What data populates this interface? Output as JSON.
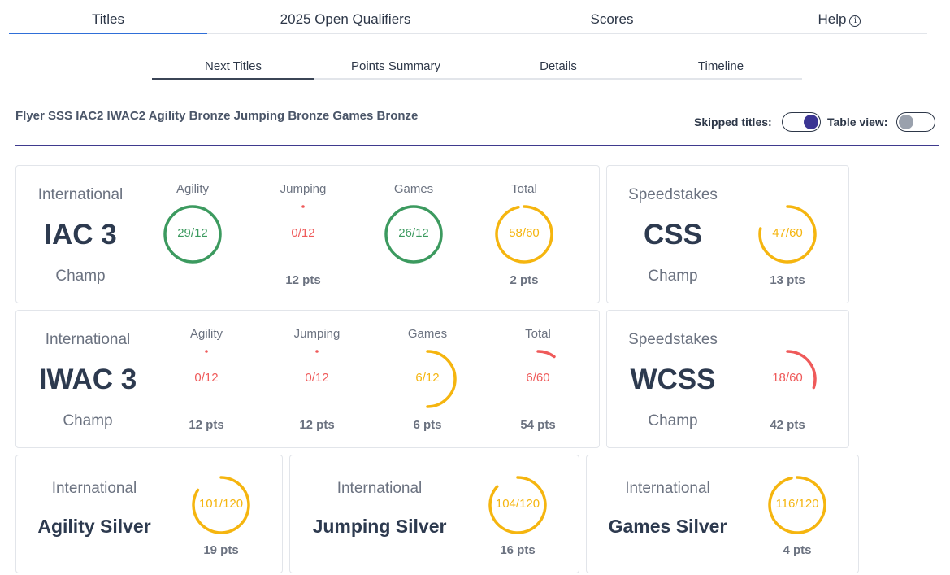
{
  "colors": {
    "green": "#3c9a5f",
    "amber": "#f5b50f",
    "red": "#ef5a5a",
    "accent": "#2f6fd8",
    "toggle_on": "#3b3593",
    "toggle_off": "#9aa1ad"
  },
  "top_tabs": [
    {
      "label": "Titles",
      "active": true
    },
    {
      "label": "2025 Open Qualifiers",
      "active": false
    },
    {
      "label": "Scores",
      "active": false
    },
    {
      "label": "Help",
      "active": false,
      "icon": "info-icon"
    }
  ],
  "sub_tabs": [
    {
      "label": "Next Titles",
      "active": true
    },
    {
      "label": "Points Summary",
      "active": false
    },
    {
      "label": "Details",
      "active": false
    },
    {
      "label": "Timeline",
      "active": false
    }
  ],
  "earned_titles": "Flyer SSS IAC2 IWAC2 Agility Bronze Jumping Bronze Games Bronze",
  "toggles": {
    "skipped": {
      "label": "Skipped titles:",
      "on": true
    },
    "table": {
      "label": "Table view:",
      "on": false
    }
  },
  "cards": {
    "iac": {
      "group": "International",
      "title": "IAC 3",
      "level": "Champ",
      "gauges": [
        {
          "label": "Agility",
          "value": "29/12",
          "fraction": 1.0,
          "color": "green",
          "pts": ""
        },
        {
          "label": "Jumping",
          "value": "0/12",
          "fraction": 0.0,
          "color": "red",
          "pts": "12 pts"
        },
        {
          "label": "Games",
          "value": "26/12",
          "fraction": 1.0,
          "color": "green",
          "pts": ""
        },
        {
          "label": "Total",
          "value": "58/60",
          "fraction": 0.967,
          "color": "amber",
          "pts": "2 pts"
        }
      ]
    },
    "css": {
      "group": "Speedstakes",
      "title": "CSS",
      "level": "Champ",
      "gauge": {
        "value": "47/60",
        "fraction": 0.783,
        "color": "amber",
        "pts": "13 pts"
      }
    },
    "iwac": {
      "group": "International",
      "title": "IWAC 3",
      "level": "Champ",
      "gauges": [
        {
          "label": "Agility",
          "value": "0/12",
          "fraction": 0.0,
          "color": "red",
          "pts": "12 pts"
        },
        {
          "label": "Jumping",
          "value": "0/12",
          "fraction": 0.0,
          "color": "red",
          "pts": "12 pts"
        },
        {
          "label": "Games",
          "value": "6/12",
          "fraction": 0.5,
          "color": "amber",
          "pts": "6 pts"
        },
        {
          "label": "Total",
          "value": "6/60",
          "fraction": 0.1,
          "color": "red",
          "pts": "54 pts"
        }
      ]
    },
    "wcss": {
      "group": "Speedstakes",
      "title": "WCSS",
      "level": "Champ",
      "gauge": {
        "value": "18/60",
        "fraction": 0.3,
        "color": "red",
        "pts": "42 pts"
      }
    },
    "agility_silver": {
      "group": "International",
      "title": "Agility Silver",
      "gauge": {
        "value": "101/120",
        "fraction": 0.842,
        "color": "amber",
        "pts": "19 pts"
      }
    },
    "jumping_silver": {
      "group": "International",
      "title": "Jumping Silver",
      "gauge": {
        "value": "104/120",
        "fraction": 0.867,
        "color": "amber",
        "pts": "16 pts"
      }
    },
    "games_silver": {
      "group": "International",
      "title": "Games Silver",
      "gauge": {
        "value": "116/120",
        "fraction": 0.967,
        "color": "amber",
        "pts": "4 pts"
      }
    }
  }
}
